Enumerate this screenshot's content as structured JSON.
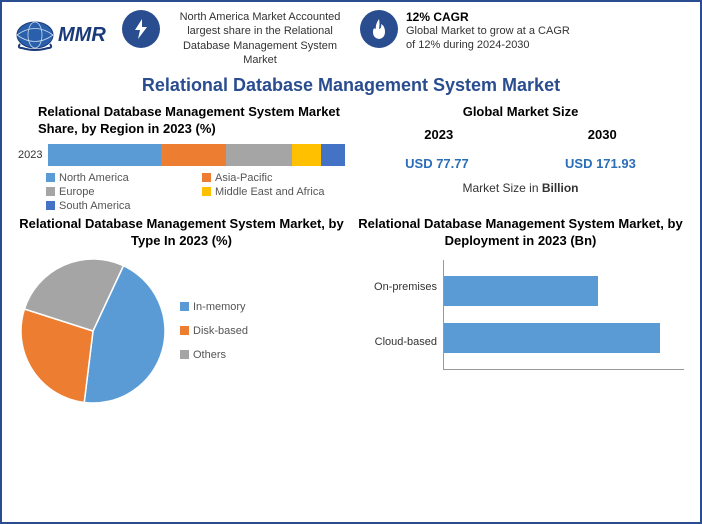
{
  "logo": {
    "text": "MMR",
    "globe_color": "#2a5fab",
    "ring_color": "#1a3a7a"
  },
  "header": {
    "block1": {
      "icon": "bolt-icon",
      "text": "North America Market Accounted largest share in the Relational Database Management System Market"
    },
    "block2": {
      "icon": "flame-icon",
      "title": "12% CAGR",
      "text": "Global Market to grow at a CAGR of 12% during 2024-2030"
    },
    "badge_bg": "#2a4d8f",
    "icon_color": "#ffffff"
  },
  "main_title": "Relational Database Management System Market",
  "region_chart": {
    "title": "Relational Database Management System Market Share, by Region in 2023 (%)",
    "year_label": "2023",
    "type": "stacked-bar",
    "segments": [
      {
        "label": "North America",
        "value": 38,
        "color": "#5a9bd5"
      },
      {
        "label": "Asia-Pacific",
        "value": 22,
        "color": "#ed7d31"
      },
      {
        "label": "Europe",
        "value": 22,
        "color": "#a5a5a5"
      },
      {
        "label": "Middle East and Africa",
        "value": 10,
        "color": "#ffc000"
      },
      {
        "label": "South America",
        "value": 8,
        "color": "#4472c4"
      }
    ]
  },
  "global_market_size": {
    "title": "Global Market Size",
    "cols": [
      {
        "year": "2023",
        "value": "USD 77.77"
      },
      {
        "year": "2030",
        "value": "USD 171.93"
      }
    ],
    "note_prefix": "Market Size in ",
    "note_bold": "Billion",
    "value_color": "#2a6db8"
  },
  "type_chart": {
    "title": "Relational Database Management System Market, by Type In 2023 (%)",
    "type": "pie",
    "slices": [
      {
        "label": "In-memory",
        "value": 45,
        "color": "#5a9bd5"
      },
      {
        "label": "Disk-based",
        "value": 28,
        "color": "#ed7d31"
      },
      {
        "label": "Others",
        "value": 27,
        "color": "#a5a5a5"
      }
    ],
    "stroke_color": "#ffffff"
  },
  "deployment_chart": {
    "title": "Relational Database Management System Market, by Deployment in 2023 (Bn)",
    "type": "bar",
    "bars": [
      {
        "label": "On-premises",
        "value": 32,
        "max": 50
      },
      {
        "label": "Cloud-based",
        "value": 45,
        "max": 50
      }
    ],
    "bar_color": "#5a9bd5",
    "axis_color": "#999999"
  },
  "colors": {
    "frame_border": "#2a4d8f",
    "title_color": "#2a4d8f",
    "background": "#ffffff"
  }
}
